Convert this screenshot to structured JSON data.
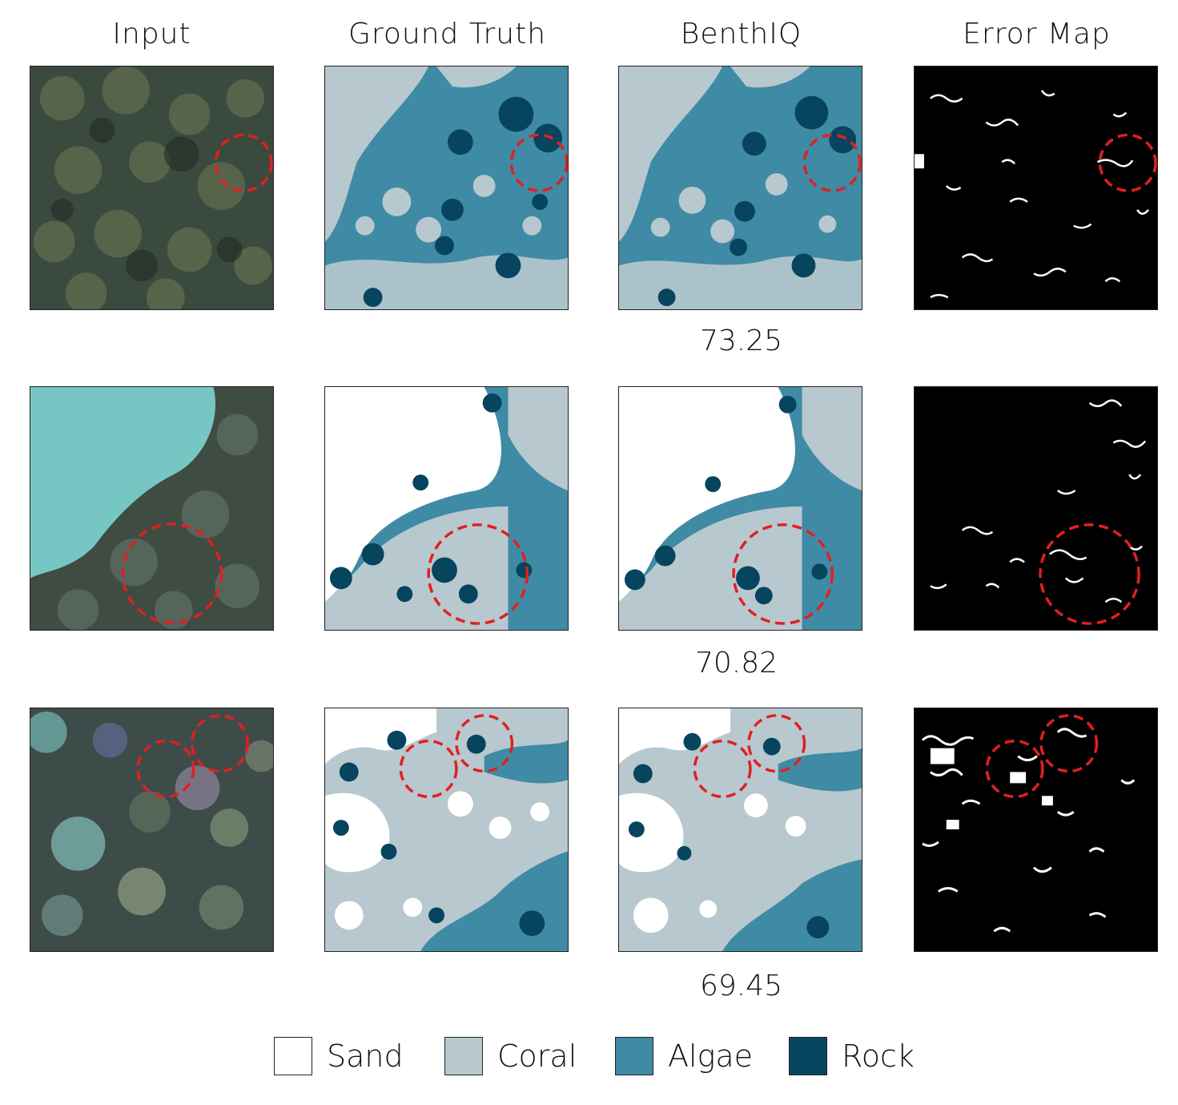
{
  "columns": [
    "Input",
    "Ground Truth",
    "BenthIQ",
    "Error Map"
  ],
  "scores": [
    "73.25",
    "70.82",
    "69.45"
  ],
  "legend": [
    {
      "label": "Sand",
      "color": "#ffffff"
    },
    {
      "label": "Coral",
      "color": "#b8c8cf"
    },
    {
      "label": "Algae",
      "color": "#3f8aa5"
    },
    {
      "label": "Rock",
      "color": "#07445d"
    }
  ],
  "colors": {
    "sand": "#ffffff",
    "coral": "#b8c8cf",
    "algae": "#3f8aa5",
    "rock": "#07445d",
    "highlight": "#e02020",
    "error_bg": "#000000",
    "error_fg": "#ffffff"
  }
}
